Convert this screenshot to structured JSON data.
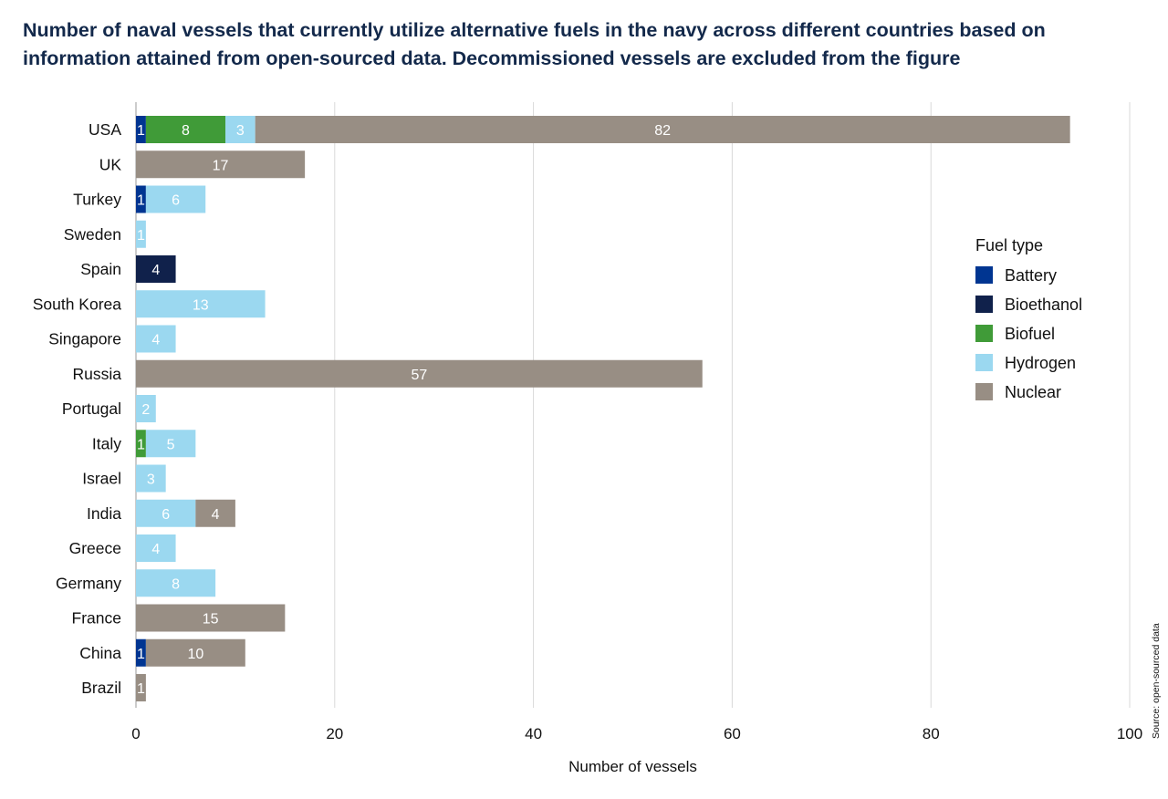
{
  "chart_data": {
    "type": "bar",
    "orientation": "horizontal",
    "stacked": true,
    "title": "Number of naval vessels that currently utilize alternative fuels in the navy across different countries based on information attained from open-sourced data. Decommissioned vessels are excluded from the figure",
    "xlabel": "Number of vessels",
    "ylabel": "",
    "xlim": [
      0,
      100
    ],
    "xticks": [
      0,
      20,
      40,
      60,
      80,
      100
    ],
    "grid": true,
    "legend_title": "Fuel type",
    "legend_position": "right",
    "source": "Source: open-sourced data",
    "categories": [
      "USA",
      "UK",
      "Turkey",
      "Sweden",
      "Spain",
      "South Korea",
      "Singapore",
      "Russia",
      "Portugal",
      "Italy",
      "Israel",
      "India",
      "Greece",
      "Germany",
      "France",
      "China",
      "Brazil"
    ],
    "series": [
      {
        "name": "Battery",
        "color": "#003591",
        "values": [
          1,
          0,
          1,
          0,
          0,
          0,
          0,
          0,
          0,
          0,
          0,
          0,
          0,
          0,
          0,
          1,
          0
        ]
      },
      {
        "name": "Bioethanol",
        "color": "#10214b",
        "values": [
          0,
          0,
          0,
          0,
          4,
          0,
          0,
          0,
          0,
          0,
          0,
          0,
          0,
          0,
          0,
          0,
          0
        ]
      },
      {
        "name": "Biofuel",
        "color": "#409b38",
        "values": [
          8,
          0,
          0,
          0,
          0,
          0,
          0,
          0,
          0,
          1,
          0,
          0,
          0,
          0,
          0,
          0,
          0
        ]
      },
      {
        "name": "Hydrogen",
        "color": "#9bd8f0",
        "values": [
          3,
          0,
          6,
          1,
          0,
          13,
          4,
          0,
          2,
          5,
          3,
          6,
          4,
          8,
          0,
          0,
          0
        ]
      },
      {
        "name": "Nuclear",
        "color": "#988e84",
        "values": [
          82,
          17,
          0,
          0,
          0,
          0,
          0,
          57,
          0,
          0,
          0,
          4,
          0,
          0,
          15,
          10,
          1
        ]
      }
    ]
  }
}
